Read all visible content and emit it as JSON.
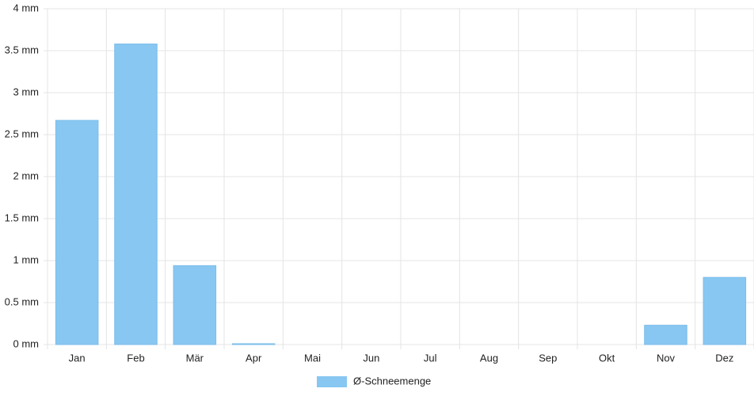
{
  "chart_data": {
    "type": "bar",
    "categories": [
      "Jan",
      "Feb",
      "Mär",
      "Apr",
      "Mai",
      "Jun",
      "Jul",
      "Aug",
      "Sep",
      "Okt",
      "Nov",
      "Dez"
    ],
    "series": [
      {
        "name": "Ø-Schneemenge",
        "color": "#88c7f2",
        "values": [
          2.67,
          3.58,
          0.94,
          0.01,
          0,
          0,
          0,
          0,
          0,
          0,
          0.23,
          0.8
        ]
      }
    ],
    "ylim": [
      0,
      4
    ],
    "yticks": [
      {
        "value": 0,
        "label": "0 mm"
      },
      {
        "value": 0.5,
        "label": "0.5 mm"
      },
      {
        "value": 1,
        "label": "1 mm"
      },
      {
        "value": 1.5,
        "label": "1.5 mm"
      },
      {
        "value": 2,
        "label": "2 mm"
      },
      {
        "value": 2.5,
        "label": "2.5 mm"
      },
      {
        "value": 3,
        "label": "3 mm"
      },
      {
        "value": 3.5,
        "label": "3.5 mm"
      },
      {
        "value": 4,
        "label": "4 mm"
      }
    ],
    "grid": true,
    "legend": "bottom"
  }
}
